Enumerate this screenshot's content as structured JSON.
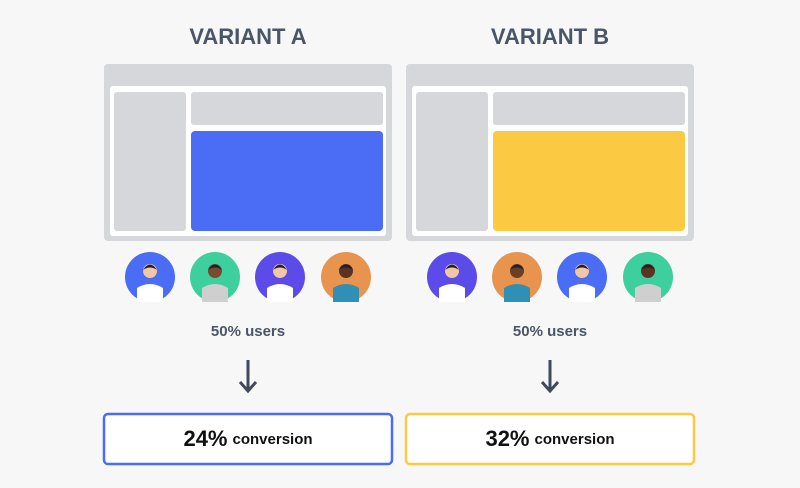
{
  "variants": [
    {
      "title": "VARIANT A",
      "users": "50% users",
      "result_value": "24%",
      "result_label": "conversion"
    },
    {
      "title": "VARIANT B",
      "users": "50% users",
      "result_value": "32%",
      "result_label": "conversion"
    }
  ]
}
